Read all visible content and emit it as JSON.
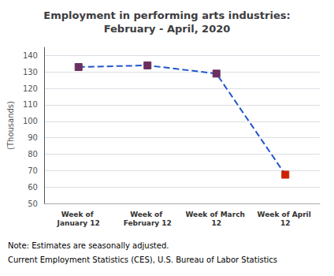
{
  "chart_data": {
    "type": "line",
    "title": "Employment in performing arts industries:\nFebruary - April, 2020",
    "categories": [
      "Week of January 12",
      "Week of February 12",
      "Week of March 12",
      "Week of April 12"
    ],
    "values": [
      133.0,
      134.0,
      129.0,
      67.5
    ],
    "color": "#2255CC",
    "colors": [
      "#6B3060",
      "#6B3060",
      "#6B3060",
      "#CC2200"
    ],
    "marker": "square",
    "line_style": "dashed",
    "ylim": [
      50,
      145
    ],
    "yticks": [
      50,
      60,
      70,
      80,
      90,
      100,
      110,
      120,
      130,
      140
    ],
    "ylabel": "(Thousands)",
    "grid": true,
    "annotations": [
      "Note: Estimates are seasonally adjusted.",
      "Current Employment Statistics (CES), U.S. Bureau of Labor Statistics"
    ]
  }
}
